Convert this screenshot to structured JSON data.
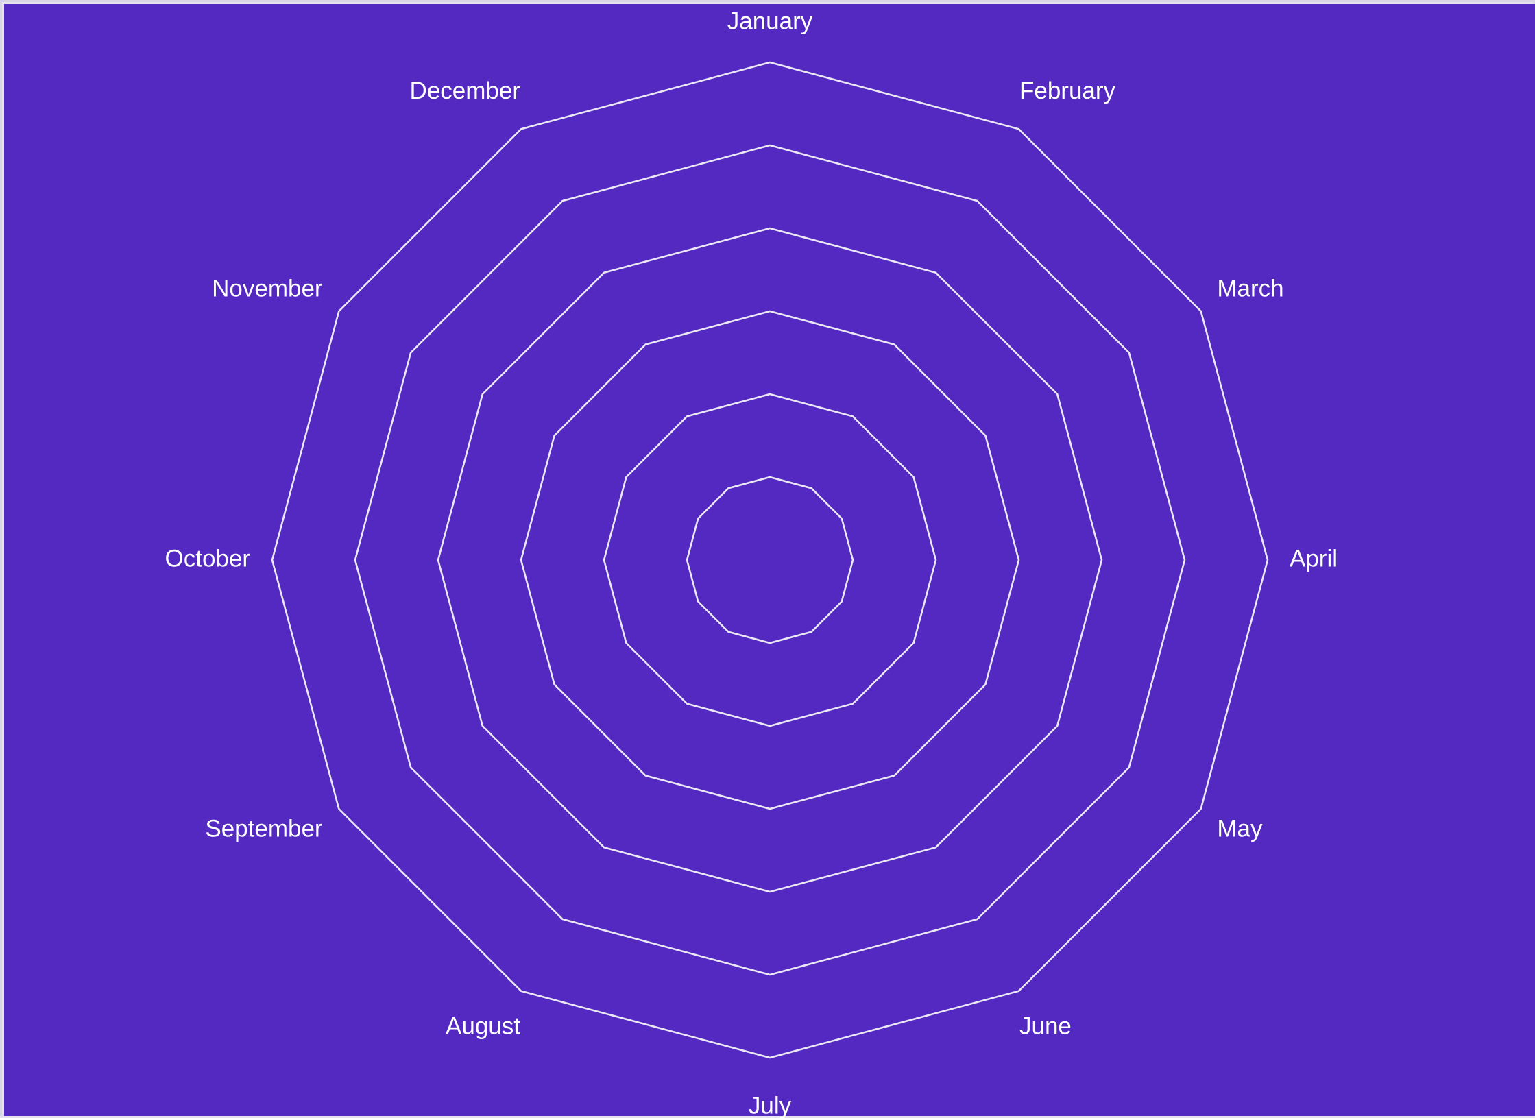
{
  "chart_data": {
    "type": "radar",
    "categories": [
      "January",
      "February",
      "March",
      "April",
      "May",
      "June",
      "July",
      "August",
      "September",
      "October",
      "November",
      "December"
    ],
    "rings": 6,
    "series": [],
    "grid": true,
    "legend": "none"
  },
  "colors": {
    "background": "#5429c2",
    "grid": "#ebe8f4",
    "label": "#ffffff",
    "frame": "#d9d6e3"
  }
}
